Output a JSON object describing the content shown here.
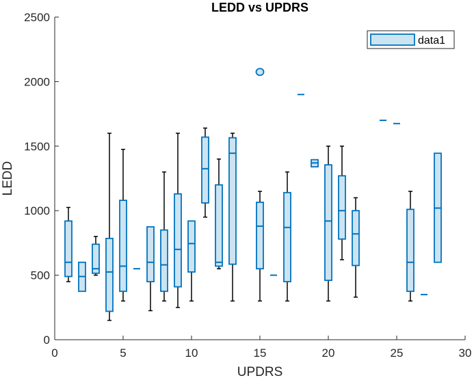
{
  "chart_data": {
    "type": "boxplot",
    "title": "LEDD vs UPDRS",
    "xlabel": "UPDRS",
    "ylabel": "LEDD",
    "xlim": [
      0,
      30
    ],
    "ylim": [
      0,
      2500
    ],
    "xticks": [
      0,
      5,
      10,
      15,
      20,
      25,
      30
    ],
    "yticks": [
      0,
      500,
      1000,
      1500,
      2000,
      2500
    ],
    "grid": false,
    "legend": {
      "entries": [
        "data1"
      ],
      "placement": "top-right"
    },
    "colors": {
      "box_edge": "#0072BD",
      "box_fill": "#CCE3F2",
      "whisker": "#000000",
      "axis": "#262626"
    },
    "boxes": [
      {
        "x": 1,
        "low": 450,
        "q1": 490,
        "median": 600,
        "q3": 920,
        "high": 1025
      },
      {
        "x": 2,
        "low": 375,
        "q1": 375,
        "median": 490,
        "q3": 600,
        "high": 600
      },
      {
        "x": 3,
        "low": 500,
        "q1": 515,
        "median": 550,
        "q3": 740,
        "high": 800
      },
      {
        "x": 4,
        "low": 150,
        "q1": 220,
        "median": 525,
        "q3": 785,
        "high": 1600
      },
      {
        "x": 5,
        "low": 300,
        "q1": 375,
        "median": 570,
        "q3": 1080,
        "high": 1475
      },
      {
        "x": 6,
        "low": 550,
        "q1": 550,
        "median": 550,
        "q3": 550,
        "high": 550
      },
      {
        "x": 7,
        "low": 225,
        "q1": 450,
        "median": 600,
        "q3": 875,
        "high": 875
      },
      {
        "x": 8,
        "low": 300,
        "q1": 375,
        "median": 580,
        "q3": 850,
        "high": 1300
      },
      {
        "x": 9,
        "low": 250,
        "q1": 410,
        "median": 700,
        "q3": 1130,
        "high": 1600
      },
      {
        "x": 10,
        "low": 300,
        "q1": 525,
        "median": 745,
        "q3": 920,
        "high": 920
      },
      {
        "x": 11,
        "low": 950,
        "q1": 1060,
        "median": 1325,
        "q3": 1570,
        "high": 1640
      },
      {
        "x": 12,
        "low": 550,
        "q1": 570,
        "median": 600,
        "q3": 1200,
        "high": 1400
      },
      {
        "x": 13,
        "low": 300,
        "q1": 585,
        "median": 1445,
        "q3": 1565,
        "high": 1600
      },
      {
        "x": 15,
        "low": 300,
        "q1": 550,
        "median": 880,
        "q3": 1065,
        "high": 1150
      },
      {
        "x": 16,
        "low": 500,
        "q1": 500,
        "median": 500,
        "q3": 500,
        "high": 500
      },
      {
        "x": 17,
        "low": 300,
        "q1": 450,
        "median": 870,
        "q3": 1140,
        "high": 1300
      },
      {
        "x": 18,
        "low": 1900,
        "q1": 1900,
        "median": 1900,
        "q3": 1900,
        "high": 1900
      },
      {
        "x": 19,
        "low": 1340,
        "q1": 1340,
        "median": 1370,
        "q3": 1395,
        "high": 1395
      },
      {
        "x": 20,
        "low": 300,
        "q1": 460,
        "median": 920,
        "q3": 1355,
        "high": 1500
      },
      {
        "x": 21,
        "low": 620,
        "q1": 780,
        "median": 1000,
        "q3": 1270,
        "high": 1500
      },
      {
        "x": 22,
        "low": 330,
        "q1": 575,
        "median": 820,
        "q3": 1000,
        "high": 1100
      },
      {
        "x": 24,
        "low": 1700,
        "q1": 1700,
        "median": 1700,
        "q3": 1700,
        "high": 1700
      },
      {
        "x": 25,
        "low": 1675,
        "q1": 1675,
        "median": 1675,
        "q3": 1675,
        "high": 1675
      },
      {
        "x": 26,
        "low": 300,
        "q1": 375,
        "median": 600,
        "q3": 1010,
        "high": 1150
      },
      {
        "x": 27,
        "low": 350,
        "q1": 350,
        "median": 350,
        "q3": 350,
        "high": 350
      },
      {
        "x": 28,
        "low": 600,
        "q1": 600,
        "median": 1020,
        "q3": 1445,
        "high": 1445
      }
    ],
    "outliers": [
      {
        "x": 15,
        "y": 2075
      }
    ]
  }
}
